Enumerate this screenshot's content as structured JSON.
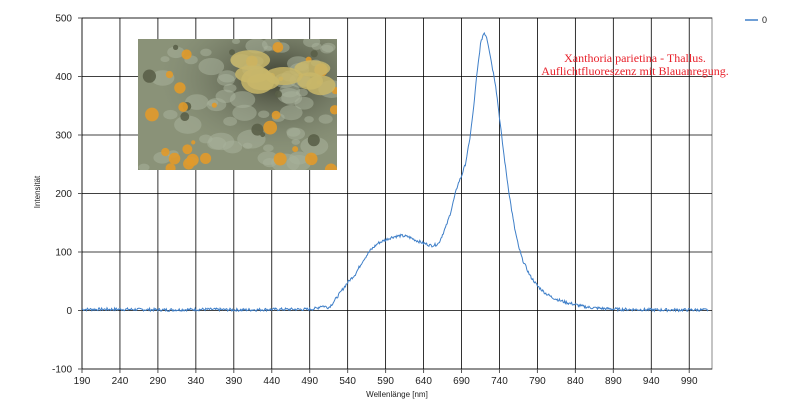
{
  "chart_data": {
    "type": "line",
    "title": "",
    "xlabel": "Wellenlänge [nm]",
    "ylabel": "Intensität",
    "xlim": [
      190,
      1020
    ],
    "ylim": [
      -100,
      500
    ],
    "x_ticks": [
      190,
      240,
      290,
      340,
      390,
      440,
      490,
      540,
      590,
      640,
      690,
      740,
      790,
      840,
      890,
      940,
      990
    ],
    "y_ticks": [
      -100,
      0,
      100,
      200,
      300,
      400,
      500
    ],
    "x_tick_labels": [
      "190",
      "240",
      "290",
      "340",
      "390",
      "440",
      "490",
      "540",
      "590",
      "640",
      "690",
      "740",
      "790",
      "840",
      "890",
      "940",
      "990"
    ],
    "y_tick_labels": [
      "-100",
      "0",
      "100",
      "200",
      "300",
      "400",
      "500"
    ],
    "grid": true,
    "legend_position": "top-right",
    "annotation_lines": [
      "Xanthoria parietina - Thallus.",
      "Auflichtfluoreszenz mit Blauanregung."
    ],
    "series": [
      {
        "name": "0",
        "color": "#3f7fc8",
        "x": [
          190,
          250,
          300,
          350,
          400,
          450,
          490,
          500,
          505,
          510,
          515,
          520,
          530,
          540,
          550,
          560,
          570,
          580,
          590,
          600,
          610,
          620,
          630,
          640,
          650,
          655,
          660,
          665,
          670,
          675,
          680,
          685,
          690,
          695,
          700,
          705,
          710,
          715,
          718,
          720,
          723,
          726,
          730,
          735,
          740,
          745,
          750,
          755,
          760,
          765,
          770,
          780,
          790,
          800,
          810,
          820,
          830,
          840,
          850,
          860,
          880,
          900,
          950,
          1000,
          1020
        ],
        "y": [
          2,
          2,
          1,
          2,
          1,
          2,
          2,
          4,
          8,
          7,
          5,
          12,
          30,
          48,
          62,
          85,
          103,
          115,
          121,
          126,
          128,
          126,
          120,
          115,
          111,
          112,
          115,
          130,
          145,
          165,
          190,
          215,
          230,
          250,
          285,
          335,
          400,
          455,
          470,
          475,
          468,
          450,
          420,
          385,
          330,
          275,
          225,
          180,
          140,
          110,
          88,
          60,
          42,
          30,
          22,
          17,
          13,
          10,
          7,
          5,
          3,
          2,
          1,
          1,
          1
        ]
      }
    ]
  },
  "inset_photo": {
    "subject": "lichen",
    "background_color": "#8a9278",
    "accent_colors": [
      "#e19a2a",
      "#c9b76a",
      "#a8b19a",
      "#5a5f48"
    ]
  }
}
